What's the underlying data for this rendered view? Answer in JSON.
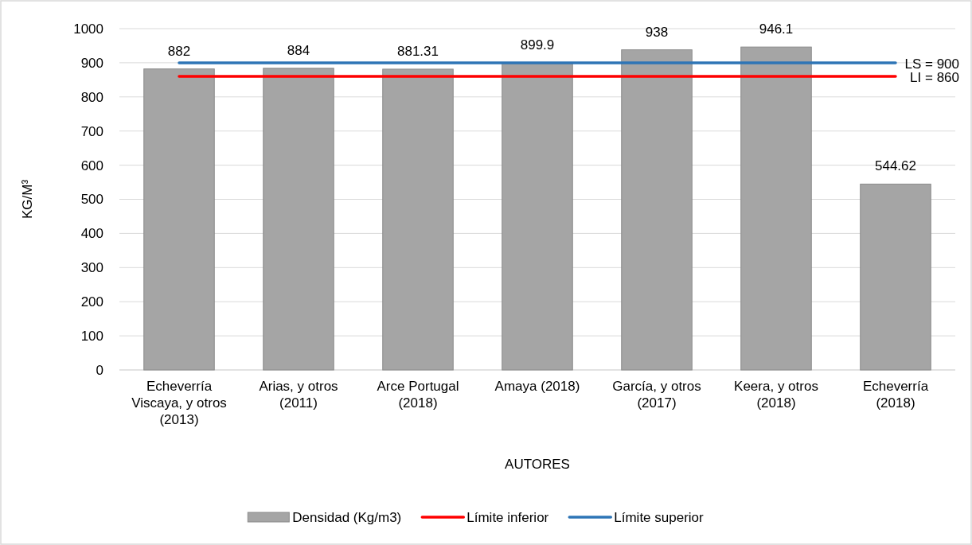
{
  "chart_data": {
    "type": "bar",
    "xlabel": "AUTORES",
    "ylabel": "KG/M³",
    "categories": [
      "Echeverría Viscaya, y otros (2013)",
      "Arias, y otros (2011)",
      "Arce Portugal (2018)",
      "Amaya (2018)",
      "García, y otros (2017)",
      "Keera, y otros (2018)",
      "Echeverría (2018)"
    ],
    "series": [
      {
        "name": "Densidad (Kg/m3)",
        "color": "#a5a5a5",
        "values": [
          882,
          884,
          881.31,
          899.9,
          938,
          946.1,
          544.62
        ],
        "value_labels": [
          "882",
          "884",
          "881.31",
          "899.9",
          "938",
          "946.1",
          "544.62"
        ]
      },
      {
        "name": "Límite inferior",
        "type": "line",
        "color": "#ff0000",
        "values": [
          860,
          860,
          860,
          860,
          860,
          860,
          860
        ]
      },
      {
        "name": "Límite superior",
        "type": "line",
        "color": "#2e75b6",
        "values": [
          900,
          900,
          900,
          900,
          900,
          900,
          900
        ]
      }
    ],
    "annotations": [
      {
        "text": "LS = 900",
        "x": "Echeverría (2018)",
        "y": 900
      },
      {
        "text": "LI = 860",
        "x": "Echeverría (2018)",
        "y": 860
      }
    ],
    "ylim": [
      0,
      1000
    ],
    "yticks": [
      0,
      100,
      200,
      300,
      400,
      500,
      600,
      700,
      800,
      900,
      1000
    ],
    "grid": "y",
    "legend": "bottom"
  }
}
